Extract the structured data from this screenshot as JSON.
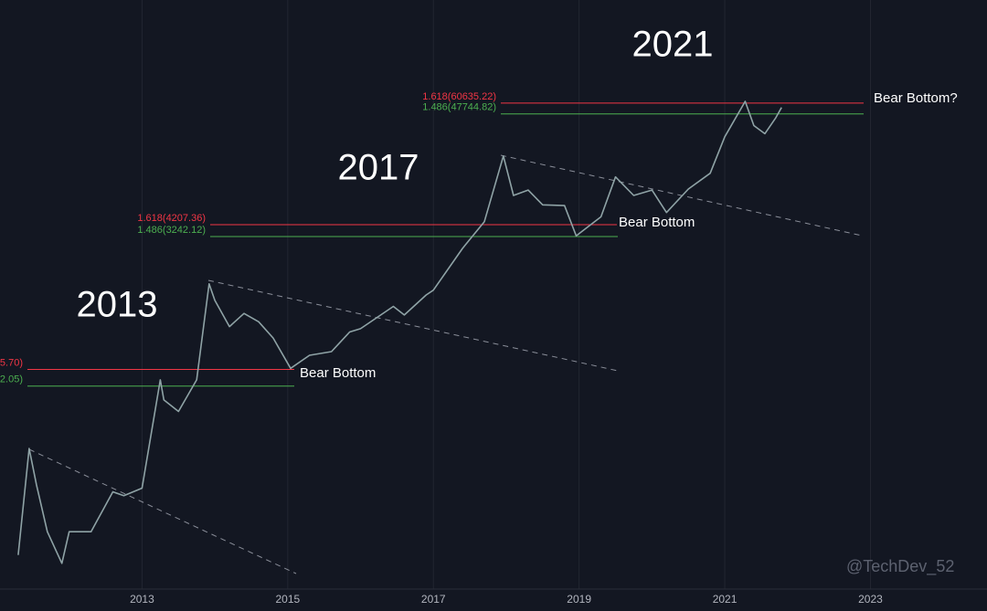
{
  "chart_data": {
    "type": "line",
    "log_scale": true,
    "background": "#131722",
    "grid": true,
    "xlim": [
      2011.05,
      2024.6
    ],
    "xticks": [
      2013,
      2015,
      2017,
      2019,
      2021,
      2023
    ],
    "ylim": [
      1.42,
      582000
    ],
    "series": [
      {
        "color": "#8fa3a6",
        "x": [
          2011.3,
          2011.45,
          2011.55,
          2011.7,
          2011.9,
          2012.0,
          2012.3,
          2012.6,
          2012.75,
          2013.0,
          2013.25,
          2013.3,
          2013.5,
          2013.75,
          2013.92,
          2014.0,
          2014.2,
          2014.4,
          2014.6,
          2014.8,
          2015.04,
          2015.3,
          2015.6,
          2015.85,
          2016.0,
          2016.45,
          2016.6,
          2016.9,
          2017.0,
          2017.4,
          2017.7,
          2017.96,
          2018.1,
          2018.3,
          2018.5,
          2018.8,
          2018.96,
          2019.3,
          2019.5,
          2019.75,
          2020.0,
          2020.2,
          2020.5,
          2020.8,
          2021.0,
          2021.28,
          2021.4,
          2021.55,
          2021.7,
          2021.78
        ],
        "values": [
          3,
          31,
          14,
          5,
          2.5,
          5,
          5,
          12,
          11,
          13,
          140,
          90,
          70,
          140,
          1150,
          800,
          450,
          600,
          500,
          350,
          180,
          240,
          260,
          400,
          430,
          700,
          580,
          900,
          1000,
          2500,
          4500,
          19000,
          8000,
          9000,
          6500,
          6400,
          3300,
          5000,
          12000,
          8000,
          9000,
          5500,
          9200,
          13000,
          29000,
          63000,
          37000,
          31000,
          44000,
          55000
        ]
      }
    ],
    "levels": [
      {
        "value": 175.7,
        "label": "5.70)",
        "color": "#f23645"
      },
      {
        "value": 122.05,
        "label": "2.05)",
        "color": "#4caf50"
      },
      {
        "value": 4207.36,
        "label": "1.618(4207.36)",
        "color": "#f23645"
      },
      {
        "value": 3242.12,
        "label": "1.486(3242.12)",
        "color": "#4caf50"
      },
      {
        "value": 60635.22,
        "label": "1.618(60635.22)",
        "color": "#f23645"
      },
      {
        "value": 47744.82,
        "label": "1.486(47744.82)",
        "color": "#4caf50"
      }
    ],
    "annotations": [
      "2013",
      "2017",
      "2021",
      "Bear Bottom",
      "Bear Bottom",
      "Bear Bottom?",
      "@TechDev_52"
    ]
  }
}
